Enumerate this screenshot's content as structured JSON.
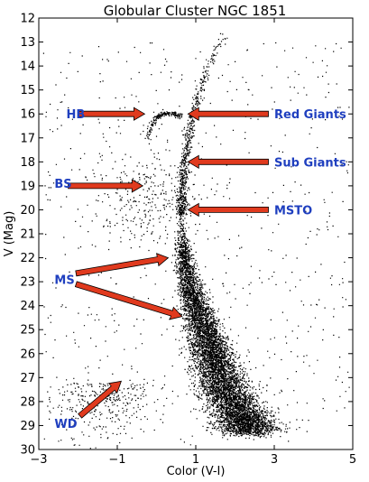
{
  "chart_data": {
    "type": "scatter",
    "title": "Globular Cluster NGC 1851",
    "xlabel": "Color (V-I)",
    "ylabel": "V (Mag)",
    "xlim": [
      -3,
      5
    ],
    "ylim": [
      30,
      12
    ],
    "y_inverted": true,
    "grid": false,
    "xticks": [
      -3,
      -1,
      1,
      3,
      5
    ],
    "xtick_labels": [
      "−3",
      "−1",
      "1",
      "3",
      "5"
    ],
    "yticks": [
      12,
      13,
      14,
      15,
      16,
      17,
      18,
      19,
      20,
      21,
      22,
      23,
      24,
      25,
      26,
      27,
      28,
      29,
      30
    ],
    "point_color": "#000000",
    "arrow_color": "#e03a1e",
    "label_color": "#1f3fbf",
    "sequences": {
      "red_giant_branch": [
        [
          1.75,
          12.6
        ],
        [
          1.45,
          13.4
        ],
        [
          1.2,
          14.5
        ],
        [
          1.0,
          15.5
        ],
        [
          0.85,
          16.5
        ],
        [
          0.75,
          17.5
        ],
        [
          0.68,
          18.5
        ],
        [
          0.63,
          19.5
        ],
        [
          0.62,
          20.2
        ]
      ],
      "main_sequence": [
        [
          0.62,
          20.2
        ],
        [
          0.66,
          21.5
        ],
        [
          0.75,
          22.5
        ],
        [
          0.9,
          23.5
        ],
        [
          1.1,
          24.5
        ],
        [
          1.3,
          25.5
        ],
        [
          1.5,
          26.5
        ],
        [
          1.75,
          27.5
        ],
        [
          2.1,
          28.5
        ],
        [
          2.4,
          29.3
        ]
      ],
      "horizontal_branch": [
        [
          -0.2,
          17.0
        ],
        [
          -0.15,
          16.5
        ],
        [
          0.0,
          16.1
        ],
        [
          0.2,
          15.95
        ],
        [
          0.45,
          16.0
        ],
        [
          0.6,
          16.05
        ]
      ]
    },
    "annotations": [
      {
        "label": "HB",
        "label_at": [
          -2.3,
          16.0
        ],
        "from": [
          -2.0,
          16.0
        ],
        "to": [
          -0.3,
          16.0
        ]
      },
      {
        "label": "Red Giants",
        "label_at": [
          3.0,
          16.0
        ],
        "from": [
          2.85,
          16.0
        ],
        "to": [
          0.8,
          16.0
        ]
      },
      {
        "label": "Sub Giants",
        "label_at": [
          3.0,
          18.0
        ],
        "from": [
          2.85,
          18.0
        ],
        "to": [
          0.8,
          18.0
        ]
      },
      {
        "label": "BS",
        "label_at": [
          -2.6,
          18.9
        ],
        "from": [
          -2.25,
          19.0
        ],
        "to": [
          -0.35,
          19.0
        ]
      },
      {
        "label": "MSTO",
        "label_at": [
          3.0,
          20.0
        ],
        "from": [
          2.85,
          20.0
        ],
        "to": [
          0.8,
          20.0
        ]
      },
      {
        "label": "MS",
        "label_at": [
          -2.6,
          22.9
        ],
        "from": [
          -2.05,
          22.65
        ],
        "to": [
          0.3,
          22.0
        ]
      },
      {
        "label": "MS",
        "label_at": null,
        "from": [
          -2.05,
          23.1
        ],
        "to": [
          0.65,
          24.45
        ]
      },
      {
        "label": "WD",
        "label_at": [
          -2.6,
          28.9
        ],
        "from": [
          -1.95,
          28.6
        ],
        "to": [
          -0.9,
          27.15
        ]
      }
    ]
  }
}
